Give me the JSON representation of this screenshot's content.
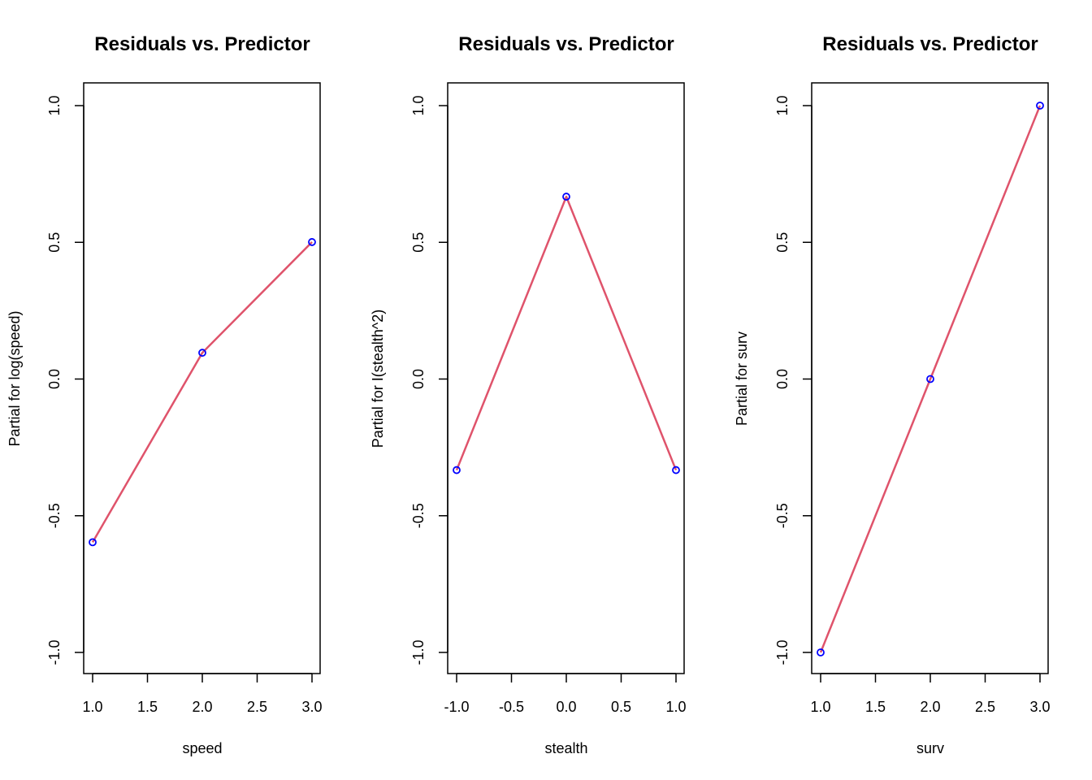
{
  "chart_data": [
    {
      "type": "line",
      "title": "Residuals vs. Predictor",
      "xlabel": "speed",
      "ylabel": "Partial for log(speed)",
      "xlim": [
        1.0,
        3.0
      ],
      "ylim": [
        -1.0,
        1.0
      ],
      "x_ticks": [
        "1.0",
        "1.5",
        "2.0",
        "2.5",
        "3.0"
      ],
      "y_ticks": [
        "-1.0",
        "-0.5",
        "0.0",
        "0.5",
        "1.0"
      ],
      "x": [
        1,
        2,
        3
      ],
      "y": [
        -0.597,
        0.096,
        0.501
      ],
      "point_color": "#0000FF",
      "line_color": "#DF536B"
    },
    {
      "type": "line",
      "title": "Residuals vs. Predictor",
      "xlabel": "stealth",
      "ylabel": "Partial for I(stealth^2)",
      "xlim": [
        -1.0,
        1.0
      ],
      "ylim": [
        -1.0,
        1.0
      ],
      "x_ticks": [
        "-1.0",
        "-0.5",
        "0.0",
        "0.5",
        "1.0"
      ],
      "y_ticks": [
        "-1.0",
        "-0.5",
        "0.0",
        "0.5",
        "1.0"
      ],
      "x": [
        -1,
        0,
        1
      ],
      "y": [
        -0.333,
        0.667,
        -0.333
      ],
      "point_color": "#0000FF",
      "line_color": "#DF536B"
    },
    {
      "type": "line",
      "title": "Residuals vs. Predictor",
      "xlabel": "surv",
      "ylabel": "Partial for surv",
      "xlim": [
        1.0,
        3.0
      ],
      "ylim": [
        -1.0,
        1.0
      ],
      "x_ticks": [
        "1.0",
        "1.5",
        "2.0",
        "2.5",
        "3.0"
      ],
      "y_ticks": [
        "-1.0",
        "-0.5",
        "0.0",
        "0.5",
        "1.0"
      ],
      "x": [
        1,
        2,
        3
      ],
      "y": [
        -1.0,
        0.0,
        1.0
      ],
      "point_color": "#0000FF",
      "line_color": "#DF536B"
    }
  ]
}
